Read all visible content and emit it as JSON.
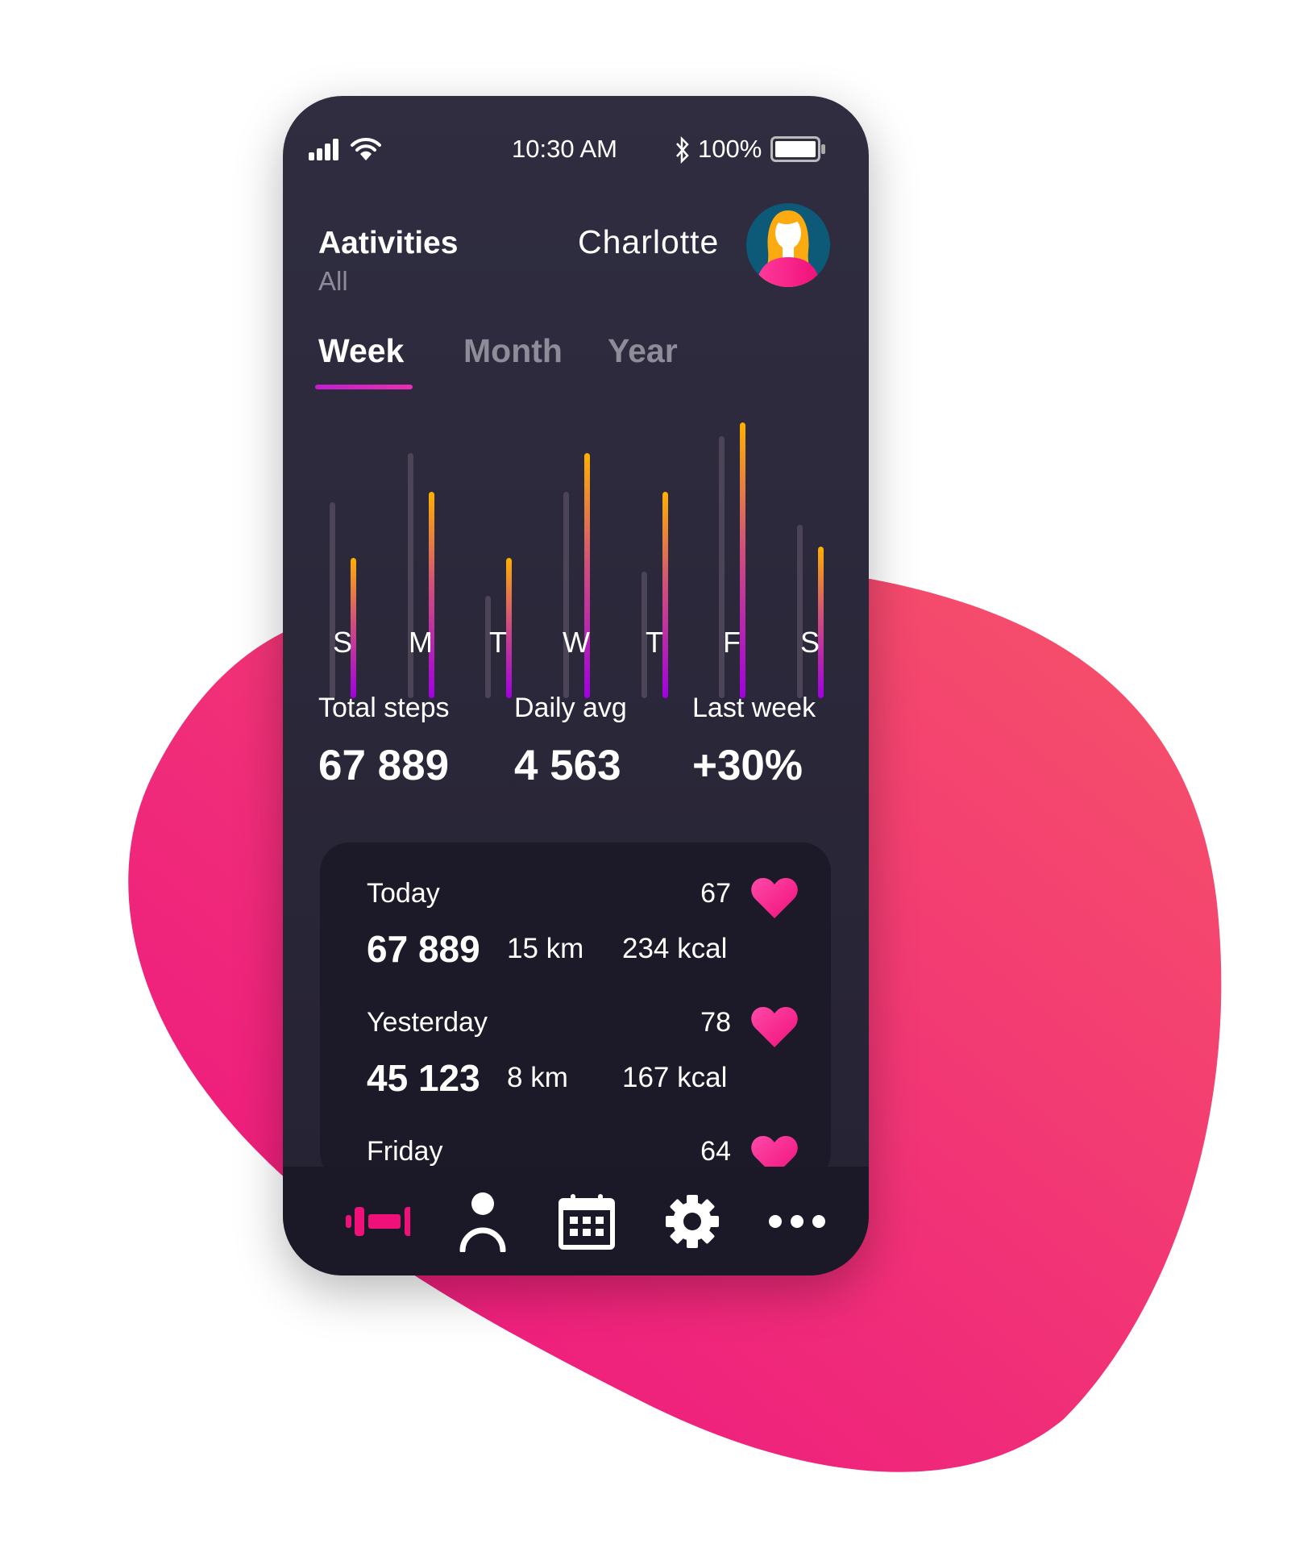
{
  "status_bar": {
    "time": "10:30 AM",
    "battery": "100%",
    "battery_level": 1.0,
    "icons": [
      "signal-icon",
      "wifi-icon",
      "bluetooth-icon",
      "battery-icon"
    ]
  },
  "header": {
    "title": "Aativities",
    "filter": "All",
    "user_name": "Charlotte"
  },
  "tabs": [
    {
      "label": "Week",
      "active": true
    },
    {
      "label": "Month",
      "active": false
    },
    {
      "label": "Year",
      "active": false
    }
  ],
  "chart_data": {
    "type": "bar",
    "categories": [
      "S",
      "M",
      "T",
      "W",
      "T",
      "F",
      "S"
    ],
    "series": [
      {
        "values": [
          71,
          89,
          37,
          75,
          46,
          95,
          63
        ],
        "color": "#4c4457"
      },
      {
        "values": [
          51,
          75,
          51,
          89,
          75,
          100,
          55
        ],
        "color": "#ffb000"
      }
    ]
  },
  "stats": [
    {
      "label": "Total steps",
      "value": "67 889"
    },
    {
      "label": "Daily avg",
      "value": "4 563"
    },
    {
      "label": "Last week",
      "value": "+30%"
    }
  ],
  "activity_list": [
    {
      "day": "Today",
      "heart_rate": "67",
      "steps": "67 889",
      "distance": "15 km",
      "calories": "234 kcal"
    },
    {
      "day": "Yesterday",
      "heart_rate": "78",
      "steps": "45 123",
      "distance": "8 km",
      "calories": "167 kcal"
    },
    {
      "day": "Friday",
      "heart_rate": "64"
    }
  ],
  "nav": {
    "items": [
      "dumbbell-icon",
      "profile-icon",
      "calendar-icon",
      "settings-icon",
      "more-icon"
    ],
    "active": 0
  },
  "colors": {
    "accent": "#f01a80",
    "bar_gradient_top": "#ffb000",
    "bar_gradient_bottom": "#a000e0",
    "phone_bg": "#2c293b"
  }
}
